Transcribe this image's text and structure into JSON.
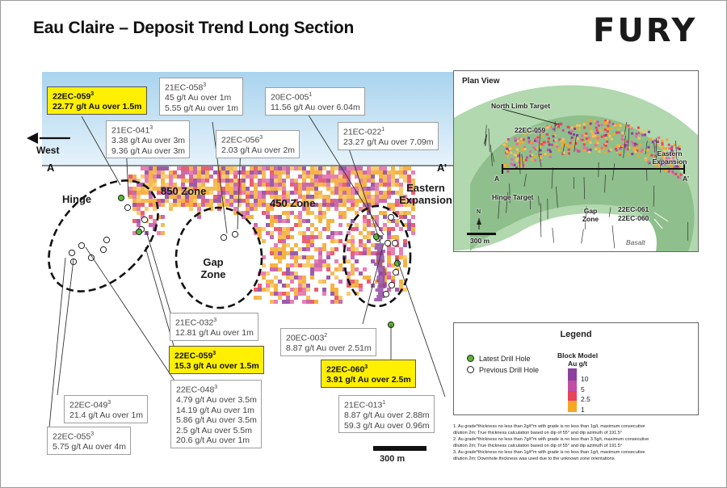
{
  "title": "Eau Claire – Deposit Trend Long Section",
  "logo": "FURY",
  "section": {
    "west_label": "West",
    "a_left": "A",
    "a_right": "A’",
    "zones": {
      "hinge": "Hinge",
      "z850": "850 Zone",
      "z450": "450 Zone",
      "gap_line1": "Gap",
      "gap_line2": "Zone",
      "eastern_line1": "Eastern",
      "eastern_line2": "Expansion"
    },
    "scale_label": "300 m"
  },
  "labels": [
    {
      "id": "059a",
      "hole": "22EC-059",
      "sup": "3",
      "lines": [
        "22.77 g/t Au over 1.5m"
      ],
      "highlight": true
    },
    {
      "id": "058",
      "hole": "21EC-058",
      "sup": "3",
      "lines": [
        "45 g/t Au over 1m",
        "5.55 g/t Au over 1m"
      ],
      "highlight": false
    },
    {
      "id": "005",
      "hole": "20EC-005",
      "sup": "1",
      "lines": [
        "11.56 g/t Au over 6.04m"
      ],
      "highlight": false
    },
    {
      "id": "041",
      "hole": "21EC-041",
      "sup": "3",
      "lines": [
        "3.38 g/t Au over 3m",
        "9.36 g/t Au over 3m"
      ],
      "highlight": false
    },
    {
      "id": "056",
      "hole": "22EC-056",
      "sup": "3",
      "lines": [
        "2.03 g/t Au over 2m"
      ],
      "highlight": false
    },
    {
      "id": "022",
      "hole": "21EC-022",
      "sup": "1",
      "lines": [
        "23.27 g/t Au over 7.09m"
      ],
      "highlight": false
    },
    {
      "id": "032",
      "hole": "21EC-032",
      "sup": "3",
      "lines": [
        "12.81 g/t Au over 1m"
      ],
      "highlight": false
    },
    {
      "id": "003",
      "hole": "20EC-003",
      "sup": "2",
      "lines": [
        "8.87 g/t Au over 2.51m"
      ],
      "highlight": false
    },
    {
      "id": "059b",
      "hole": "22EC-059",
      "sup": "3",
      "lines": [
        "15.3 g/t Au over 1.5m"
      ],
      "highlight": true
    },
    {
      "id": "060",
      "hole": "22EC-060",
      "sup": "3",
      "lines": [
        "3.91 g/t Au over 2.5m"
      ],
      "highlight": true
    },
    {
      "id": "048",
      "hole": "22EC-048",
      "sup": "3",
      "lines": [
        "4.79 g/t Au over 3.5m",
        "14.19 g/t Au over 1m",
        "5.86 g/t Au over 3.5m",
        "2.5 g/t Au over 5.5m",
        "20.6 g/t Au over 1m"
      ],
      "highlight": false
    },
    {
      "id": "013",
      "hole": "21EC-013",
      "sup": "1",
      "lines": [
        "8.87 g/t Au over 2.88m",
        "59.3 g/t Au over 0.96m"
      ],
      "highlight": false
    },
    {
      "id": "049",
      "hole": "22EC-049",
      "sup": "3",
      "lines": [
        "21.4 g/t Au over 1m"
      ],
      "highlight": false
    },
    {
      "id": "055",
      "hole": "22EC-055",
      "sup": "3",
      "lines": [
        "5.75 g/t Au over 4m"
      ],
      "highlight": false
    }
  ],
  "plan_view": {
    "title": "Plan View",
    "north_limb": "North Limb Target",
    "hole_059": "22EC-059",
    "eastern_line1": "Eastern",
    "eastern_line2": "Expansion",
    "a_left": "A",
    "a_right": "A’",
    "hinge_target": "Hinge Target",
    "gap_line1": "Gap",
    "gap_line2": "Zone",
    "hole_061": "22EC-061",
    "hole_060": "22EC-060",
    "basalt": "Basalt",
    "north_arrow": "N",
    "scale": "300 m"
  },
  "legend": {
    "title": "Legend",
    "latest": "Latest Drill Hole",
    "previous": "Previous Drill Hole",
    "block_model_line1": "Block Model",
    "block_model_line2": "Au g/t",
    "values": [
      "10",
      "5",
      "2.5",
      "1"
    ],
    "colors": {
      "latest": "#5cb335",
      "previous": "#ffffff",
      "v10": "#8b3f9e",
      "v5": "#e46aa7",
      "v2_5": "#e8435a",
      "v1": "#f5a623"
    }
  },
  "notes": [
    "1. Au grade*thickness no less than 2g/t*m with grade is no less than 1g/t, maximum consecutive",
    "dilution 2m; True thickness calculation based on dip of 55° and dip azimuth of 191.5°",
    "2. Au grade*thickness no less than 7g/t*m with grade is no less than 3.5g/t, maximum consecutive",
    "dilution 2m; True thickness calculation based on dip of 55° and dip azimuth of 191.5°",
    "3. Au grade*thickness no less than 1g/t*m with grade is no less than 1g/t, maximum consecutive",
    "dilution 2m; Downhole thickness was used due to the unknown zone orientations"
  ]
}
